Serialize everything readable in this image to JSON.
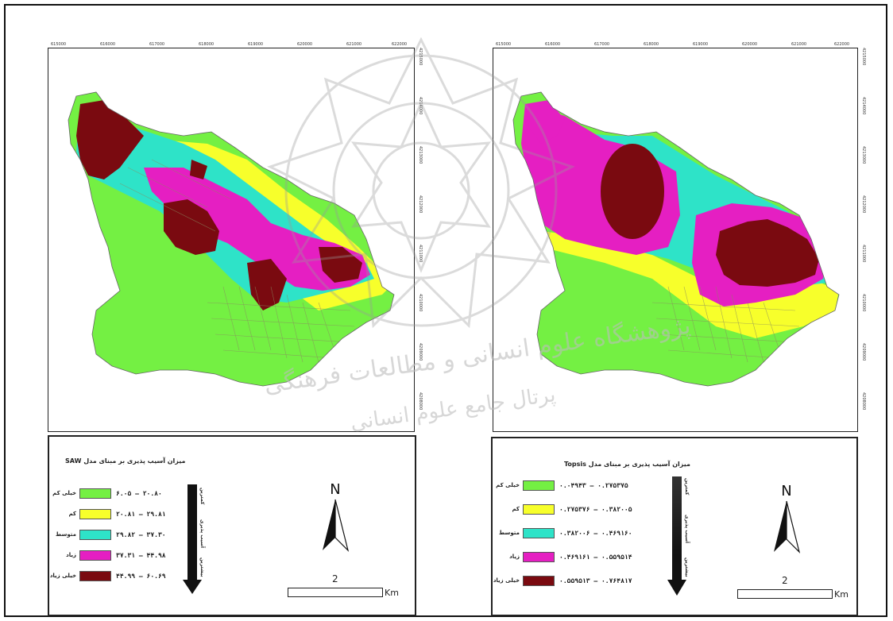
{
  "colors": {
    "very_low": "#74f043",
    "low": "#f7ff2b",
    "medium": "#2ee3c8",
    "high": "#e51fc2",
    "very_high": "#7a0a10"
  },
  "x_ticks": [
    "615000",
    "616000",
    "617000",
    "618000",
    "619000",
    "620000",
    "621000",
    "622000"
  ],
  "y_ticks": [
    "4215000",
    "4214000",
    "4213000",
    "4212000",
    "4211000",
    "4210000",
    "4209000",
    "4208000"
  ],
  "left_legend": {
    "title": "میزان آسیب پذیری بر مبنای مدل SAW",
    "arrow_top_label": "کمترین",
    "arrow_mid_label": "آسیب پذیری",
    "arrow_bottom_label": "بیشترین",
    "rows": [
      {
        "label": "خیلی کم",
        "range": "۶.۰۵ – ۲۰.۸۰"
      },
      {
        "label": "کم",
        "range": "۲۰.۸۱ – ۲۹.۸۱"
      },
      {
        "label": "متوسط",
        "range": "۲۹.۸۲ – ۳۷.۳۰"
      },
      {
        "label": "زیاد",
        "range": "۳۷.۳۱ – ۴۴.۹۸"
      },
      {
        "label": "خیلی زیاد",
        "range": "۴۴.۹۹ – ۶۰.۶۹"
      }
    ]
  },
  "right_legend": {
    "title": "میزان آسیب پذیری بر مبنای مدل Topsis",
    "arrow_top_label": "کمترین",
    "arrow_mid_label": "آسیب پذیری",
    "arrow_bottom_label": "بیشترین",
    "rows": [
      {
        "label": "خیلی کم",
        "range": "۰.۰۴۹۴۳ – ۰.۲۷۵۳۷۵"
      },
      {
        "label": "کم",
        "range": "۰.۲۷۵۳۷۶ – ۰.۳۸۲۰۰۵"
      },
      {
        "label": "متوسط",
        "range": "۰.۳۸۲۰۰۶ – ۰.۴۶۹۱۶۰"
      },
      {
        "label": "زیاد",
        "range": "۰.۴۶۹۱۶۱ – ۰.۵۵۹۵۱۴"
      },
      {
        "label": "خیلی زیاد",
        "range": "۰.۵۵۹۵۱۳ – ۰.۷۶۴۸۱۷"
      }
    ]
  },
  "north_label": "N",
  "scale_value": "2",
  "scale_unit": "Km",
  "watermark_text_1": "پژوهشگاه علوم انسانی و مطالعات فرهنگی",
  "watermark_text_2": "پرتال جامع علوم انسانی"
}
